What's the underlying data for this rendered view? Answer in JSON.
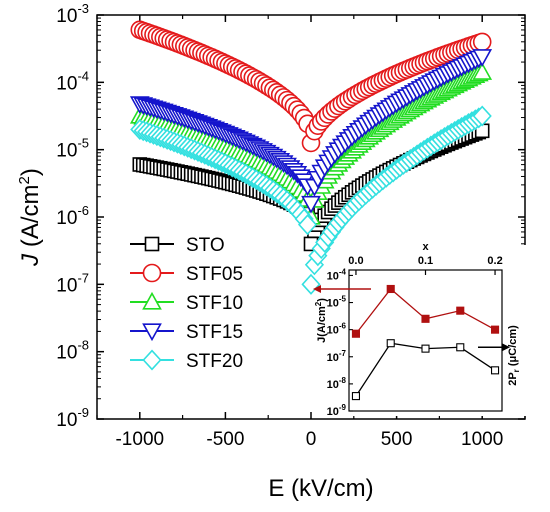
{
  "chart_data": [
    {
      "type": "scatter",
      "title": "",
      "xlabel": "E (kV/cm)",
      "ylabel": "J (A/cm2)",
      "xlim": [
        -1250,
        1250
      ],
      "ylim_log10": [
        -9,
        -3
      ],
      "yscale": "log",
      "x_ticks": [
        "-1000",
        "-500",
        "0",
        "500",
        "1000"
      ],
      "y_ticks": [
        "10-9",
        "10-8",
        "10-7",
        "10-6",
        "10-5",
        "10-4",
        "10-3"
      ],
      "legend_position": "left-center",
      "series": [
        {
          "name": "STO",
          "marker": "square",
          "color": "#000000",
          "left": -5.22,
          "leftMin": -6.05,
          "right": -4.72,
          "rightMin": -6.4
        },
        {
          "name": "STF05",
          "marker": "circle",
          "color": "#e41a1c",
          "left": -3.22,
          "leftMin": -4.8,
          "right": -3.4,
          "rightMin": -4.9
        },
        {
          "name": "STF10",
          "marker": "triangle-up",
          "color": "#22dd22",
          "left": -4.5,
          "leftMin": -5.9,
          "right": -3.85,
          "rightMin": -6.0
        },
        {
          "name": "STF15",
          "marker": "triangle-down",
          "color": "#1515cc",
          "left": -4.32,
          "leftMin": -5.7,
          "right": -3.62,
          "rightMin": -5.8
        },
        {
          "name": "STF20",
          "marker": "diamond",
          "color": "#33e0e0",
          "left": -4.7,
          "leftMin": -6.3,
          "right": -4.5,
          "rightMin": -7.0
        }
      ]
    },
    {
      "type": "line",
      "title": "inset",
      "xlabel": "x",
      "ylabel_left": "J(A/cm2)",
      "ylabel_right": "2Pr (μC/cm)",
      "xlim": [
        -0.01,
        0.21
      ],
      "x_ticks": [
        "0.0",
        "0.1",
        "0.2"
      ],
      "y_ticks": [
        "10-9",
        "10-8",
        "10-7",
        "10-6",
        "10-5",
        "10-4"
      ],
      "series": [
        {
          "name": "J",
          "color": "#b01010",
          "fill": "#b01010",
          "x": [
            0.0,
            0.05,
            0.1,
            0.15,
            0.2
          ],
          "y_log10": [
            -6.15,
            -4.5,
            -5.6,
            -5.3,
            -6.0
          ]
        },
        {
          "name": "2Pr",
          "color": "#000000",
          "fill": "#ffffff",
          "x": [
            0.0,
            0.05,
            0.1,
            0.15,
            0.2
          ],
          "y_log10": [
            -8.45,
            -6.5,
            -6.7,
            -6.65,
            -7.5
          ]
        }
      ]
    }
  ]
}
